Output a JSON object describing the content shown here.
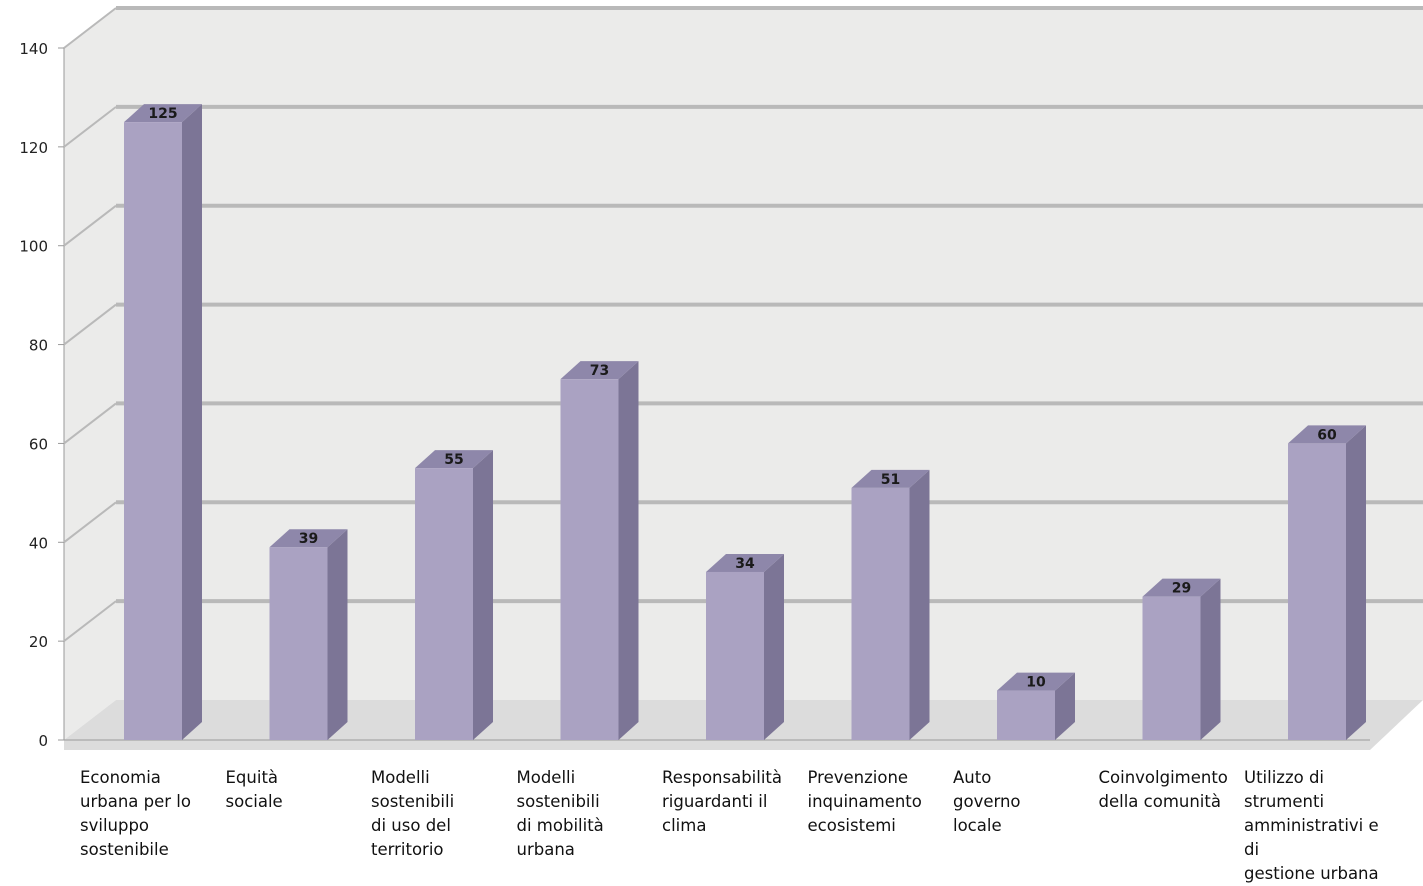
{
  "chart_data": {
    "type": "bar",
    "title": "",
    "xlabel": "",
    "ylabel": "",
    "ylim": [
      0,
      140
    ],
    "yticks": [
      "0",
      "20",
      "40",
      "60",
      "80",
      "100",
      "120",
      "140"
    ],
    "grid": true,
    "style": "3d",
    "categories": [
      "Economia\nurbana per lo\nsviluppo\nsostenibile",
      "Equità\nsociale",
      "Modelli\nsostenibili\ndi uso del\nterritorio",
      "Modelli\nsostenibili\ndi mobilità\nurbana",
      "Responsabilità\nriguardanti il\nclima",
      "Prevenzione\ninquinamento\necosistemi",
      "Auto\ngoverno\nlocale",
      "Coinvolgimento\ndella comunità",
      "Utilizzo di strumenti\namministrativi e di\ngestione urbana"
    ],
    "values": [
      125,
      39,
      55,
      73,
      34,
      51,
      10,
      29,
      60
    ],
    "value_labels": [
      "125",
      "39",
      "55",
      "73",
      "34",
      "51",
      "10",
      "29",
      "60"
    ],
    "colors": {
      "bar_front": "#aaa2c2",
      "bar_side": "#7c7596",
      "bar_top": "#8e87aa",
      "wall": "#ebebea",
      "floor": "#dcdcdc",
      "gridline": "#b9b9b9"
    }
  }
}
